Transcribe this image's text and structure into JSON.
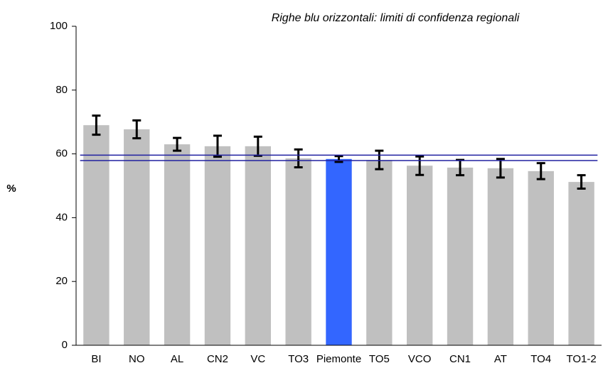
{
  "chart_data": {
    "type": "bar",
    "annotation": "Righe blu orizzontali: limiti di confidenza regionali",
    "y_label": "%",
    "categories": [
      "BI",
      "NO",
      "AL",
      "CN2",
      "VC",
      "TO3",
      "Piemonte",
      "TO5",
      "VCO",
      "CN1",
      "AT",
      "TO4",
      "TO1-2"
    ],
    "values": [
      69,
      67.7,
      63,
      62.4,
      62.4,
      58.6,
      58.4,
      58.1,
      56.3,
      55.7,
      55.5,
      54.6,
      51.2
    ],
    "errors": [
      3,
      2.8,
      2,
      3.3,
      3,
      2.8,
      0.9,
      2.9,
      2.9,
      2.4,
      2.9,
      2.5,
      2.1
    ],
    "colors": [
      "#c0c0c0",
      "#c0c0c0",
      "#c0c0c0",
      "#c0c0c0",
      "#c0c0c0",
      "#c0c0c0",
      "#3366ff",
      "#c0c0c0",
      "#c0c0c0",
      "#c0c0c0",
      "#c0c0c0",
      "#c0c0c0",
      "#c0c0c0"
    ],
    "error_color": "#000000",
    "hlines": [
      57.9,
      59.6
    ],
    "hline_color": "#2020a0",
    "ylim": [
      0,
      100
    ],
    "yticks": [
      0,
      20,
      40,
      60,
      80,
      100
    ],
    "grid": false
  }
}
